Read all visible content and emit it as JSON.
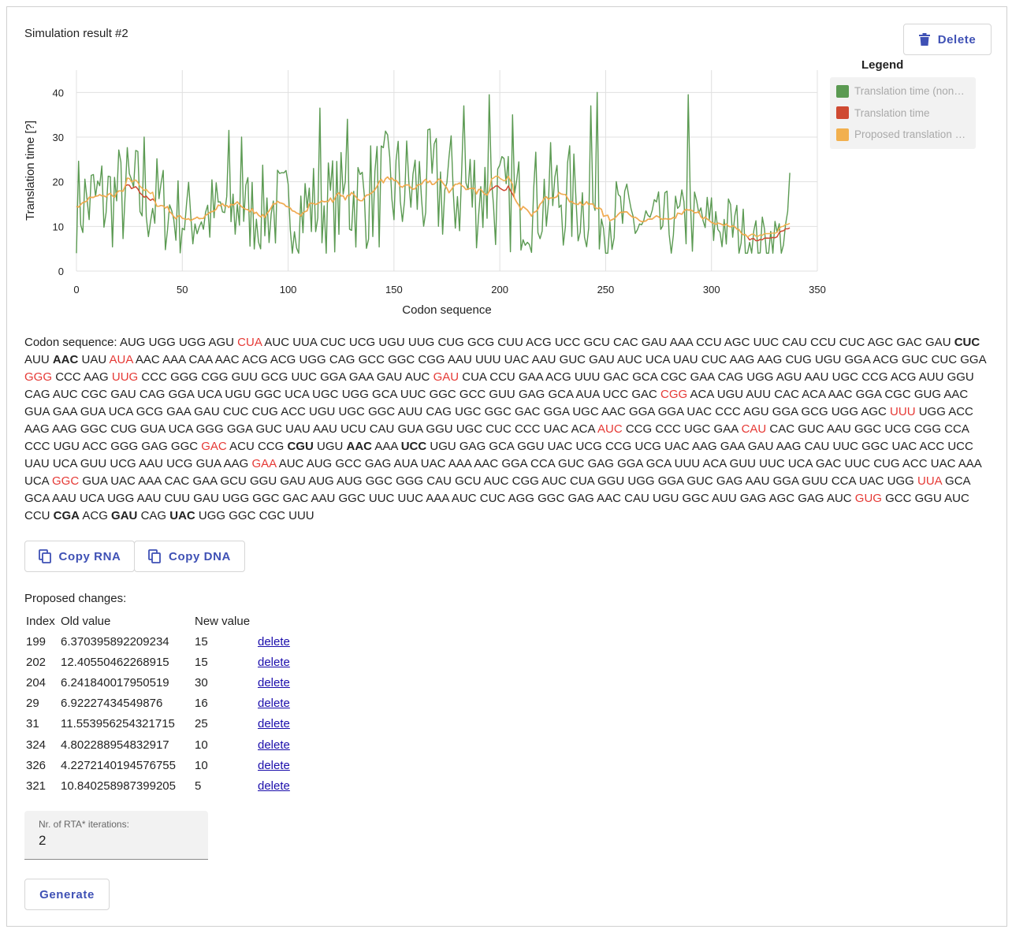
{
  "title": "Simulation result #2",
  "buttons": {
    "delete": "Delete",
    "copy_rna": "Copy RNA",
    "copy_dna": "Copy DNA",
    "generate": "Generate"
  },
  "icons": {
    "delete": "trash-icon",
    "copy": "copy-icon"
  },
  "legend": {
    "title": "Legend",
    "items": [
      {
        "label": "Translation time (non…",
        "color": "#5b9a52"
      },
      {
        "label": "Translation time",
        "color": "#cf4a32"
      },
      {
        "label": "Proposed translation …",
        "color": "#f2b04e"
      }
    ]
  },
  "chart_data": {
    "type": "line",
    "xlabel": "Codon sequence",
    "ylabel": "Translation time [?]",
    "xlim": [
      0,
      350
    ],
    "ylim": [
      0,
      45
    ],
    "xticks": [
      "0",
      "50",
      "100",
      "150",
      "200",
      "250",
      "300",
      "350"
    ],
    "yticks": [
      "0",
      "10",
      "20",
      "30",
      "40"
    ],
    "grid": true,
    "n_points": 338,
    "series": [
      {
        "name": "Translation time (non…",
        "color": "#5b9a52",
        "description": "highly fluctuating per-codon times, mostly 5–25, peaks near 30–40 (x≈32, 72, 115, 183, 195, 243, 246, 289)"
      },
      {
        "name": "Translation time",
        "color": "#cf4a32",
        "description": "smoothed times, visible where they differ from proposal (x≈25–35, 195–205, 318–338)"
      },
      {
        "name": "Proposed translation …",
        "color": "#f2b04e",
        "description": "smoothed proposed times, ~15 at start, ~12 near 50, ~18 near 150–190, ~10 near 300, ~7 near 330"
      }
    ]
  },
  "codons": {
    "label": "Codon sequence: ",
    "sequence": "AUG UGG UGG AGU CUA AUC UUA CUC UCG UGU UUG CUG GCG CUU ACG UCC GCU CAC GAU AAA CCU AGC UUC CAU CCU CUC AGC GAC GAU CUC AUU AAC UAU AUA AAC AAA CAA AAC ACG ACG UGG CAG GCC GGC CGG AAU UUU UAC AAU GUC GAU AUC UCA UAU CUC AAG AAG CUG UGU GGA ACG GUC CUC GGA GGG CCC AAG UUG CCC GGG CGG GUU GCG UUC GGA GAA GAU AUC GAU CUA CCU GAA ACG UUU GAC GCA CGC GAA CAG UGG AGU AAU UGC CCG ACG AUU GGU CAG AUC CGC GAU CAG GGA UCA UGU GGC UCA UGC UGG GCA UUC GGC GCC GUU GAG GCA AUA UCC GAC CGG ACA UGU AUU CAC ACA AAC GGA CGC GUG AAC GUA GAA GUA UCA GCG GAA GAU CUC CUG ACC UGU UGC GGC AUU CAG UGC GGC GAC GGA UGC AAC GGA GGA UAC CCC AGU GGA GCG UGG AGC UUU UGG ACC AAG AAG GGC CUG GUA UCA GGG GGA GUC UAU AAU UCU CAU GUA GGU UGC CUC CCC UAC ACA AUC CCG CCC UGC GAA CAU CAC GUC AAU GGC UCG CGG CCA CCC UGU ACC GGG GAG GGC GAC ACU CCG CGU UGU AAC AAA UCC UGU GAG GCA GGU UAC UCG CCG UCG UAC AAG GAA GAU AAG CAU UUC GGC UAC ACC UCC UAU UCA GUU UCG AAU UCG GUA AAG GAA AUC AUG GCC GAG AUA UAC AAA AAC GGA CCA GUC GAG GGA GCA UUU ACA GUU UUC UCA GAC UUC CUG ACC UAC AAA UCA GGC GUA UAC AAA CAC GAA GCU GGU GAU AUG AUG GGC GGG CAU GCU AUC CGG AUC CUA GGU UGG GGA GUC GAG AAU GGA GUU CCA UAC UGG UUA GCA GCA AAU UCA UGG AAU CUU GAU UGG GGC GAC AAU GGC UUC UUC AAA AUC CUC AGG GGC GAG AAC CAU UGU GGC AUU GAG AGC GAG AUC GUG GCC GGU AUC CCU CGA ACG GAU CAG UAC UGG GGC CGC UUU",
    "red_indices": [
      4,
      33,
      64,
      67,
      78,
      119,
      160,
      183,
      188,
      202,
      237,
      264,
      294,
      325
    ],
    "bold_indices": [
      29,
      31,
      205,
      207,
      209,
      330,
      332,
      334
    ],
    "red_color": "#e53935"
  },
  "changes": {
    "title": "Proposed changes:",
    "headers": [
      "Index",
      "Old value",
      "New value",
      ""
    ],
    "delete_label": "delete",
    "rows": [
      {
        "index": "199",
        "old": "6.370395892209234",
        "new": "15"
      },
      {
        "index": "202",
        "old": "12.40550462268915",
        "new": "15"
      },
      {
        "index": "204",
        "old": "6.241840017950519",
        "new": "30"
      },
      {
        "index": "29",
        "old": "6.92227434549876",
        "new": "16"
      },
      {
        "index": "31",
        "old": "11.553956254321715",
        "new": "25"
      },
      {
        "index": "324",
        "old": "4.802288954832917",
        "new": "10"
      },
      {
        "index": "326",
        "old": "4.2272140194576755",
        "new": "10"
      },
      {
        "index": "321",
        "old": "10.840258987399205",
        "new": "5"
      }
    ]
  },
  "iterations": {
    "label": "Nr. of RTA* iterations:",
    "value": "2"
  }
}
